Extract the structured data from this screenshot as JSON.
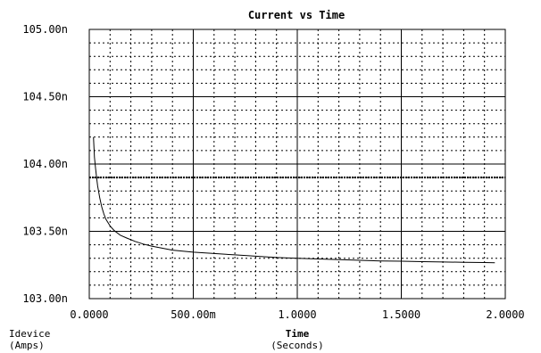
{
  "chart_data": {
    "type": "line",
    "title": "Current vs Time",
    "xlabel": "Time",
    "xlabel_unit": "(Seconds)",
    "ylabel": "Idevice",
    "ylabel_unit": "(Amps)",
    "xlim": [
      0,
      2.0
    ],
    "ylim": [
      103.0,
      105.0
    ],
    "y_unit_scale": "n",
    "x_ticks": [
      0,
      0.5,
      1.0,
      1.5,
      2.0
    ],
    "x_tick_labels": [
      "0.0000",
      "500.00m",
      "1.0000",
      "1.5000",
      "2.0000"
    ],
    "y_ticks": [
      103.0,
      103.5,
      104.0,
      104.5,
      105.0
    ],
    "y_tick_labels": [
      "103.00n",
      "103.50n",
      "104.00n",
      "104.50n",
      "105.00n"
    ],
    "grid": true,
    "reference_line_y": 103.9,
    "series": [
      {
        "color": "#000000",
        "x": [
          0.02,
          0.025,
          0.03,
          0.035,
          0.04,
          0.05,
          0.06,
          0.07,
          0.08,
          0.1,
          0.12,
          0.15,
          0.18,
          0.22,
          0.26,
          0.3,
          0.35,
          0.4,
          0.5,
          0.6,
          0.7,
          0.8,
          0.9,
          1.0,
          1.1,
          1.2,
          1.3,
          1.4,
          1.5,
          1.6,
          1.7,
          1.8,
          1.9,
          1.95
        ],
        "y": [
          104.2,
          104.05,
          103.97,
          103.9,
          103.84,
          103.75,
          103.68,
          103.63,
          103.59,
          103.54,
          103.505,
          103.47,
          103.45,
          103.425,
          103.405,
          103.39,
          103.375,
          103.36,
          103.345,
          103.335,
          103.325,
          103.315,
          103.305,
          103.3,
          103.295,
          103.29,
          103.285,
          103.28,
          103.278,
          103.275,
          103.272,
          103.27,
          103.268,
          103.266
        ]
      }
    ]
  }
}
